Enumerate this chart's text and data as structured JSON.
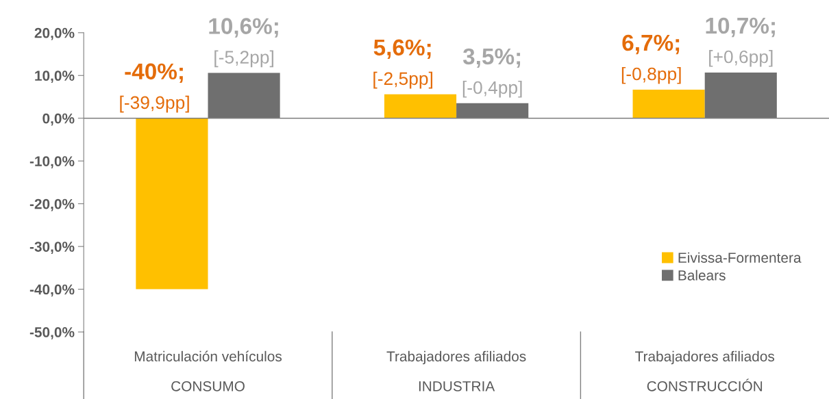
{
  "chart_data": {
    "type": "bar",
    "categories": [
      "Matriculación vehículos\nCONSUMO",
      "Trabajadores afiliados\nINDUSTRIA",
      "Trabajadores afiliados\nCONSTRUCCIÓN"
    ],
    "series": [
      {
        "name": "Eivissa-Formentera",
        "color": "#ffc000",
        "values": [
          -40,
          5.6,
          6.7
        ],
        "value_labels": [
          "-40%;\n[-39,9pp]",
          "5,6%;\n[-2,5pp]",
          "6,7%;\n[-0,8pp]"
        ]
      },
      {
        "name": "Balears",
        "color": "#6f6f6f",
        "values": [
          10.6,
          3.5,
          10.7
        ],
        "value_labels": [
          "10,6%;\n[-5,2pp]",
          "3,5%;\n[-0,4pp]",
          "10,7%;\n[+0,6pp]"
        ]
      }
    ],
    "ylim": [
      -50,
      20
    ],
    "yticks": [
      {
        "value": -50,
        "label": "-50,0%"
      },
      {
        "value": -40,
        "label": "-40,0%"
      },
      {
        "value": -30,
        "label": "-30,0%"
      },
      {
        "value": -20,
        "label": "-20,0%"
      },
      {
        "value": -10,
        "label": "-10,0%"
      },
      {
        "value": 0,
        "label": "0,0%"
      },
      {
        "value": 10,
        "label": "10,0%"
      },
      {
        "value": 20,
        "label": "20,0%"
      }
    ],
    "ref_lines": [
      {
        "axis": "y",
        "value": 0,
        "color": "#7f7f7f"
      }
    ],
    "grid": false,
    "legend": "bottom right"
  }
}
